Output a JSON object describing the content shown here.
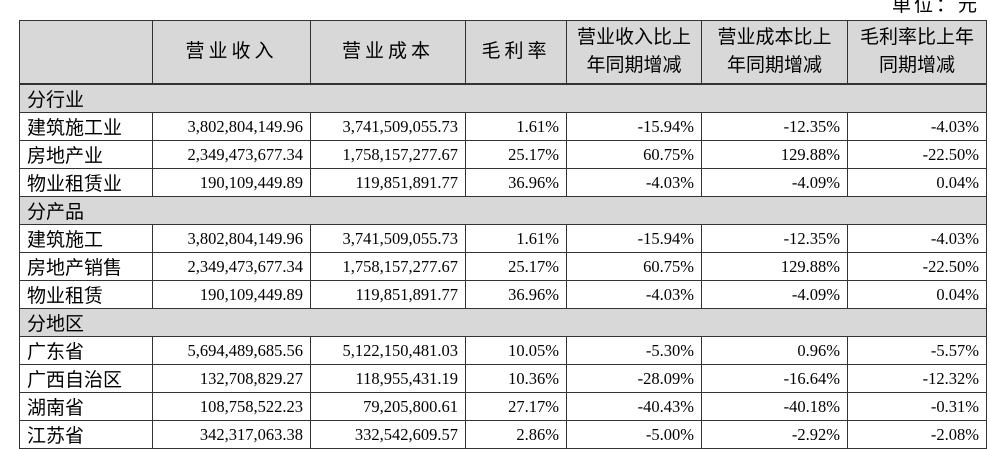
{
  "unit_label": "单位：元",
  "colors": {
    "table_grid": "#333333",
    "header_bg": "#d8d8d8",
    "section_bg": "#d8d8d8",
    "page_bg": "#ffffff",
    "text": "#000000"
  },
  "table": {
    "columns": [
      "",
      "营业收入",
      "营业成本",
      "毛利率",
      "营业收入比上\n年同期增减",
      "营业成本比上\n年同期增减",
      "毛利率比上年\n同期增减"
    ],
    "sections": [
      {
        "title": "分行业",
        "rows": [
          [
            "建筑施工业",
            "3,802,804,149.96",
            "3,741,509,055.73",
            "1.61%",
            "-15.94%",
            "-12.35%",
            "-4.03%"
          ],
          [
            "房地产业",
            "2,349,473,677.34",
            "1,758,157,277.67",
            "25.17%",
            "60.75%",
            "129.88%",
            "-22.50%"
          ],
          [
            "物业租赁业",
            "190,109,449.89",
            "119,851,891.77",
            "36.96%",
            "-4.03%",
            "-4.09%",
            "0.04%"
          ]
        ]
      },
      {
        "title": "分产品",
        "rows": [
          [
            "建筑施工",
            "3,802,804,149.96",
            "3,741,509,055.73",
            "1.61%",
            "-15.94%",
            "-12.35%",
            "-4.03%"
          ],
          [
            "房地产销售",
            "2,349,473,677.34",
            "1,758,157,277.67",
            "25.17%",
            "60.75%",
            "129.88%",
            "-22.50%"
          ],
          [
            "物业租赁",
            "190,109,449.89",
            "119,851,891.77",
            "36.96%",
            "-4.03%",
            "-4.09%",
            "0.04%"
          ]
        ]
      },
      {
        "title": "分地区",
        "rows": [
          [
            "广东省",
            "5,694,489,685.56",
            "5,122,150,481.03",
            "10.05%",
            "-5.30%",
            "0.96%",
            "-5.57%"
          ],
          [
            "广西自治区",
            "132,708,829.27",
            "118,955,431.19",
            "10.36%",
            "-28.09%",
            "-16.64%",
            "-12.32%"
          ],
          [
            "湖南省",
            "108,758,522.23",
            "79,205,800.61",
            "27.17%",
            "-40.43%",
            "-40.18%",
            "-0.31%"
          ],
          [
            "江苏省",
            "342,317,063.38",
            "332,542,609.57",
            "2.86%",
            "-5.00%",
            "-2.92%",
            "-2.08%"
          ]
        ]
      }
    ]
  }
}
